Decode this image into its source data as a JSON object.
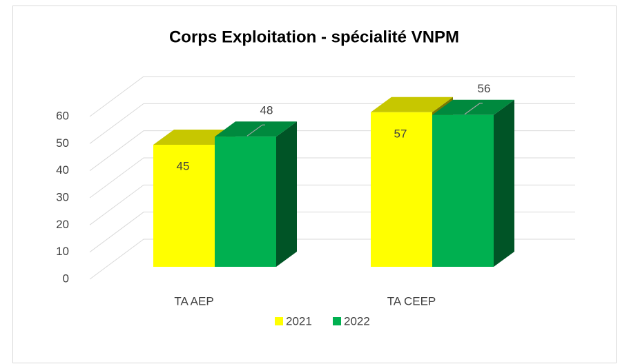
{
  "chart_data": {
    "type": "bar3d",
    "title": "Corps Exploitation - spécialité VNPM",
    "categories": [
      "TA AEP",
      "TA CEEP"
    ],
    "series": [
      {
        "name": "2021",
        "color": "#ffff00",
        "values": [
          45,
          57
        ]
      },
      {
        "name": "2022",
        "color": "#00b050",
        "values": [
          48,
          56
        ]
      }
    ],
    "ylim": [
      0,
      60
    ],
    "yticks": [
      0,
      10,
      20,
      30,
      40,
      50,
      60
    ],
    "grid": true,
    "legend": "bottom"
  }
}
